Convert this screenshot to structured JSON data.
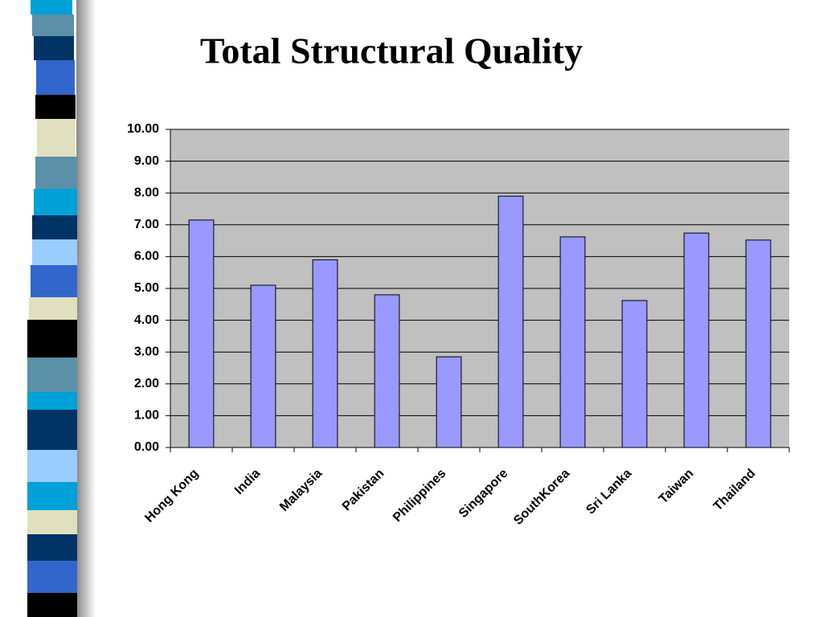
{
  "chart_data": {
    "type": "bar",
    "title": "Total Structural Quality",
    "categories": [
      "Hong Kong",
      "India",
      "Malaysia",
      "Pakistan",
      "Philippines",
      "Singapore",
      "SouthKorea",
      "Sri Lanka",
      "Taiwan",
      "Thailand"
    ],
    "values": [
      7.15,
      5.1,
      5.9,
      4.8,
      2.85,
      7.9,
      6.62,
      4.62,
      6.74,
      6.52
    ],
    "color": "#9999ff",
    "ylim": [
      0,
      10
    ],
    "yticks": [
      {
        "value": 0,
        "label": "0.00"
      },
      {
        "value": 1,
        "label": "1.00"
      },
      {
        "value": 2,
        "label": "2.00"
      },
      {
        "value": 3,
        "label": "3.00"
      },
      {
        "value": 4,
        "label": "4.00"
      },
      {
        "value": 5,
        "label": "5.00"
      },
      {
        "value": 6,
        "label": "6.00"
      },
      {
        "value": 7,
        "label": "7.00"
      },
      {
        "value": 8,
        "label": "8.00"
      },
      {
        "value": 9,
        "label": "9.00"
      },
      {
        "value": 10,
        "label": "10.00"
      }
    ],
    "grid": true
  }
}
